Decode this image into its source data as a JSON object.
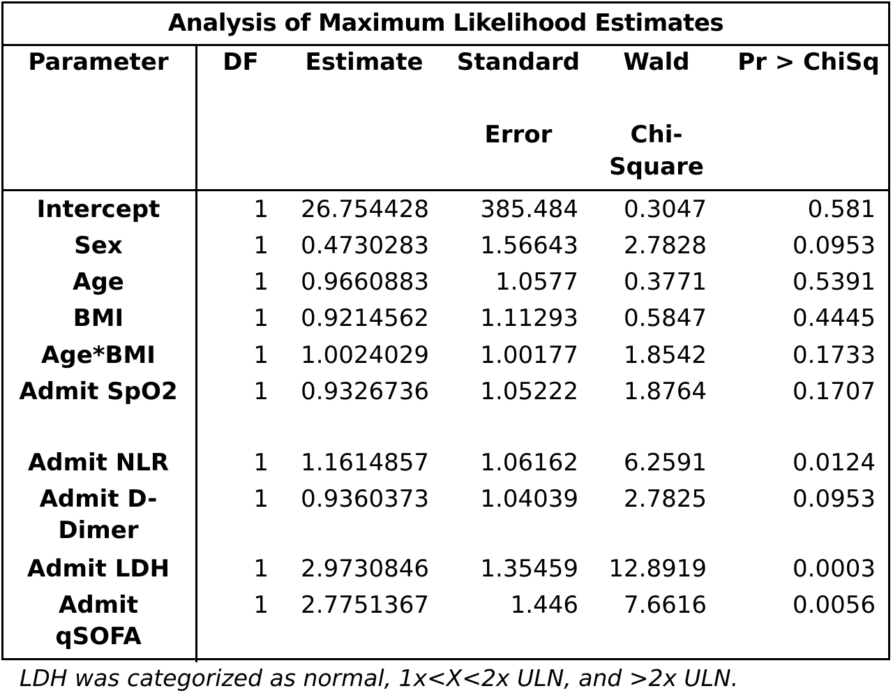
{
  "title": "Analysis of Maximum Likelihood Estimates",
  "headers": {
    "parameter": "Parameter",
    "df": "DF",
    "estimate": "Estimate",
    "se_line1": "Standard",
    "se_line2": "Error",
    "wald_line1": "Wald",
    "wald_line2": "Chi-",
    "wald_line3": "Square",
    "p": "Pr > ChiSq"
  },
  "rows": [
    {
      "parameter": "Intercept",
      "df": "1",
      "estimate": "26.754428",
      "se": "385.484",
      "wald": "0.3047",
      "p": "0.581"
    },
    {
      "parameter": "Sex",
      "df": "1",
      "estimate": "0.4730283",
      "se": "1.56643",
      "wald": "2.7828",
      "p": "0.0953"
    },
    {
      "parameter": "Age",
      "df": "1",
      "estimate": "0.9660883",
      "se": "1.0577",
      "wald": "0.3771",
      "p": "0.5391"
    },
    {
      "parameter": "BMI",
      "df": "1",
      "estimate": "0.9214562",
      "se": "1.11293",
      "wald": "0.5847",
      "p": "0.4445"
    },
    {
      "parameter": "Age*BMI",
      "df": "1",
      "estimate": "1.0024029",
      "se": "1.00177",
      "wald": "1.8542",
      "p": "0.1733"
    },
    {
      "parameter": "Admit SpO2",
      "df": "1",
      "estimate": "0.9326736",
      "se": "1.05222",
      "wald": "1.8764",
      "p": "0.1707"
    },
    {
      "parameter": "Admit NLR",
      "df": "1",
      "estimate": "1.1614857",
      "se": "1.06162",
      "wald": "6.2591",
      "p": "0.0124"
    },
    {
      "parameter": "Admit D-Dimer",
      "parameter_line1": "Admit D-",
      "parameter_line2": "Dimer",
      "df": "1",
      "estimate": "0.9360373",
      "se": "1.04039",
      "wald": "2.7825",
      "p": "0.0953"
    },
    {
      "parameter": "Admit LDH",
      "df": "1",
      "estimate": "2.9730846",
      "se": "1.35459",
      "wald": "12.8919",
      "p": "0.0003"
    },
    {
      "parameter": "Admit qSOFA",
      "parameter_line1": "Admit",
      "parameter_line2": "qSOFA",
      "df": "1",
      "estimate": "2.7751367",
      "se": "1.446",
      "wald": "7.6616",
      "p": "0.0056"
    }
  ],
  "footnote": "LDH was categorized as normal, 1x<X<2x ULN, and >2x ULN."
}
